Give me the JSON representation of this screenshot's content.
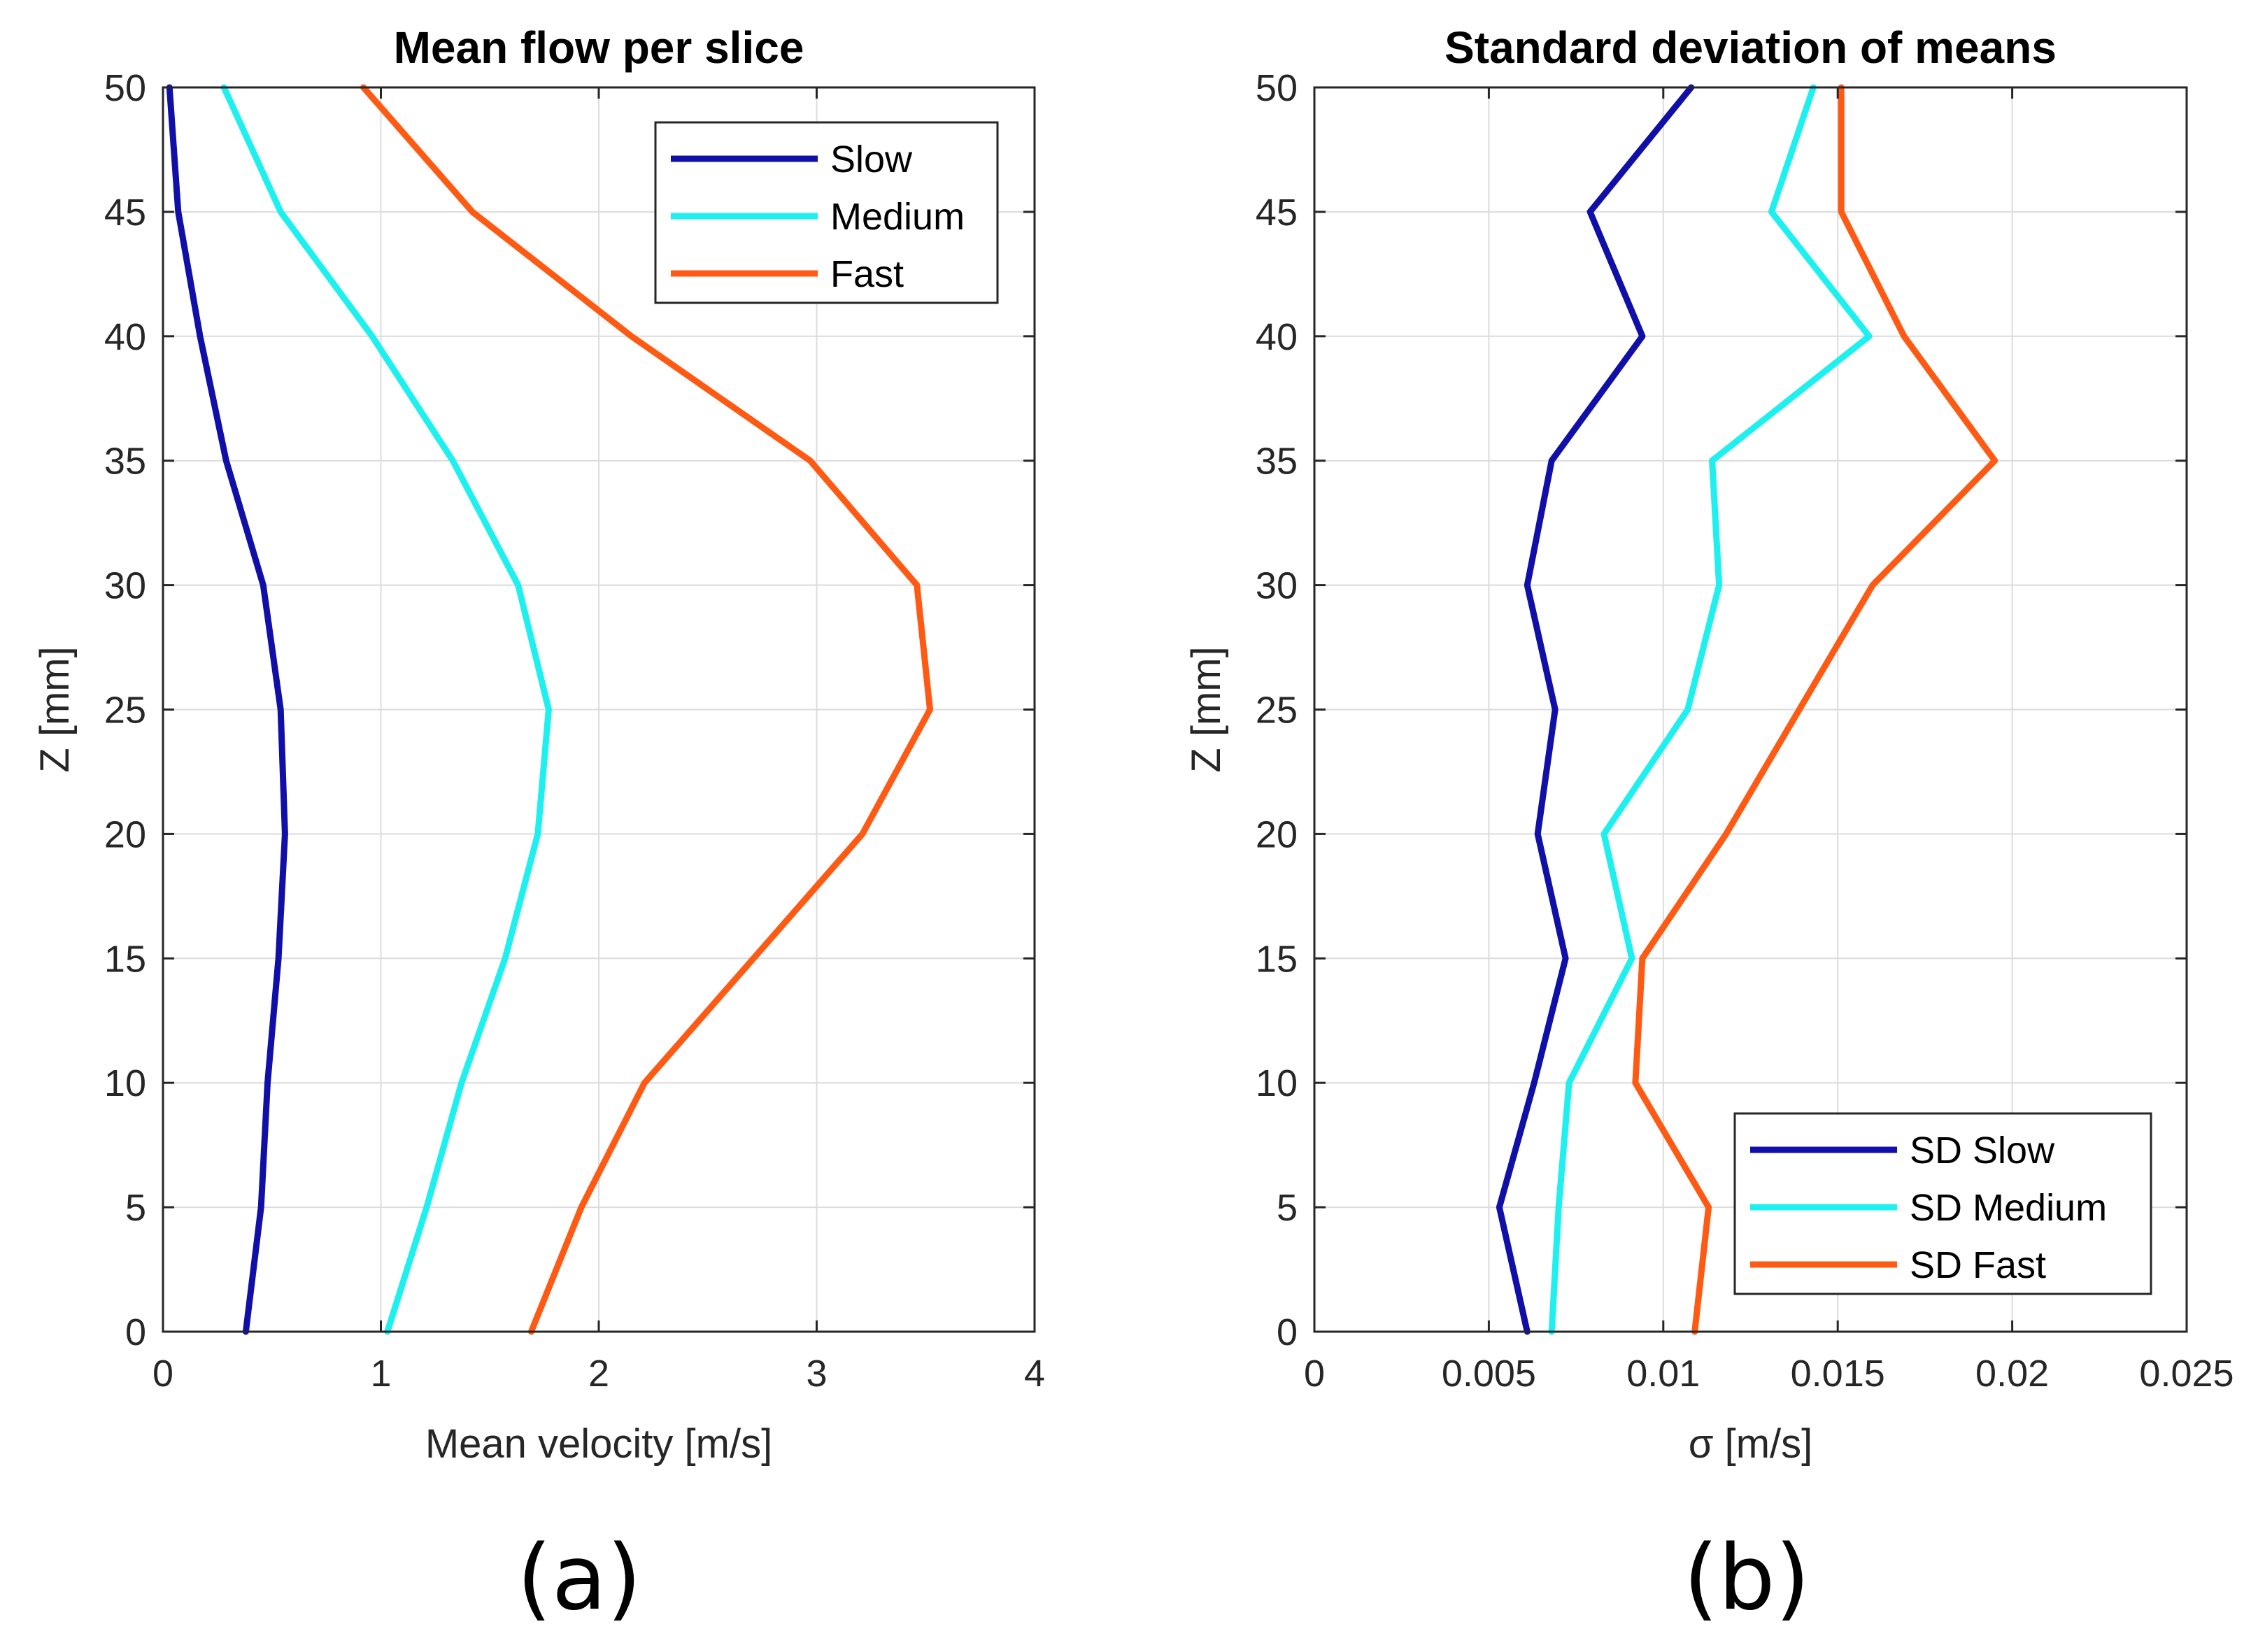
{
  "chart_data": [
    {
      "type": "line",
      "title": "Mean flow per slice",
      "xlabel": "Mean velocity [m/s]",
      "ylabel": "Z [mm]",
      "xlim": [
        0,
        4
      ],
      "ylim": [
        0,
        50
      ],
      "xticks": [
        0,
        1,
        2,
        3,
        4
      ],
      "xtick_labels": [
        "0",
        "1",
        "2",
        "3",
        "4"
      ],
      "yticks": [
        0,
        5,
        10,
        15,
        20,
        25,
        30,
        35,
        40,
        45,
        50
      ],
      "ytick_labels": [
        "0",
        "5",
        "10",
        "15",
        "20",
        "25",
        "30",
        "35",
        "40",
        "45",
        "50"
      ],
      "grid": true,
      "legend_position": "top-right",
      "caption": "(a)",
      "z": [
        0,
        5,
        10,
        15,
        20,
        25,
        30,
        35,
        40,
        45,
        50
      ],
      "series": [
        {
          "name": "Slow",
          "color": "#1010a8",
          "x": [
            0.38,
            0.45,
            0.48,
            0.53,
            0.56,
            0.54,
            0.46,
            0.29,
            0.17,
            0.07,
            0.03
          ]
        },
        {
          "name": "Medium",
          "color": "#1ef0f0",
          "x": [
            1.03,
            1.21,
            1.37,
            1.57,
            1.72,
            1.77,
            1.63,
            1.33,
            0.96,
            0.54,
            0.28
          ]
        },
        {
          "name": "Fast",
          "color": "#ff5a14",
          "x": [
            1.69,
            1.92,
            2.21,
            2.71,
            3.21,
            3.52,
            3.46,
            2.97,
            2.15,
            1.42,
            0.92
          ]
        }
      ]
    },
    {
      "type": "line",
      "title": "Standard deviation of means",
      "xlabel": "σ [m/s]",
      "ylabel": "Z [mm]",
      "xlim": [
        0,
        0.025
      ],
      "ylim": [
        0,
        50
      ],
      "xticks": [
        0,
        0.005,
        0.01,
        0.015,
        0.02,
        0.025
      ],
      "xtick_labels": [
        "0",
        "0.005",
        "0.01",
        "0.015",
        "0.02",
        "0.025"
      ],
      "yticks": [
        0,
        5,
        10,
        15,
        20,
        25,
        30,
        35,
        40,
        45,
        50
      ],
      "ytick_labels": [
        "0",
        "5",
        "10",
        "15",
        "20",
        "25",
        "30",
        "35",
        "40",
        "45",
        "50"
      ],
      "grid": true,
      "legend_position": "bottom-right",
      "caption": "(b)",
      "z": [
        0,
        5,
        10,
        15,
        20,
        25,
        30,
        35,
        40,
        45,
        50
      ],
      "series": [
        {
          "name": "SD Slow",
          "color": "#1010a8",
          "x": [
            0.0061,
            0.0053,
            0.0063,
            0.0072,
            0.0064,
            0.0069,
            0.0061,
            0.0068,
            0.0094,
            0.0079,
            0.0108
          ]
        },
        {
          "name": "SD Medium",
          "color": "#1ef0f0",
          "x": [
            0.0068,
            0.007,
            0.0073,
            0.0091,
            0.0083,
            0.0107,
            0.0116,
            0.0114,
            0.0159,
            0.0131,
            0.0143
          ]
        },
        {
          "name": "SD Fast",
          "color": "#ff5a14",
          "x": [
            0.0109,
            0.0113,
            0.0092,
            0.0094,
            0.0118,
            0.0139,
            0.016,
            0.0195,
            0.0169,
            0.0151,
            0.0151
          ]
        }
      ]
    }
  ]
}
